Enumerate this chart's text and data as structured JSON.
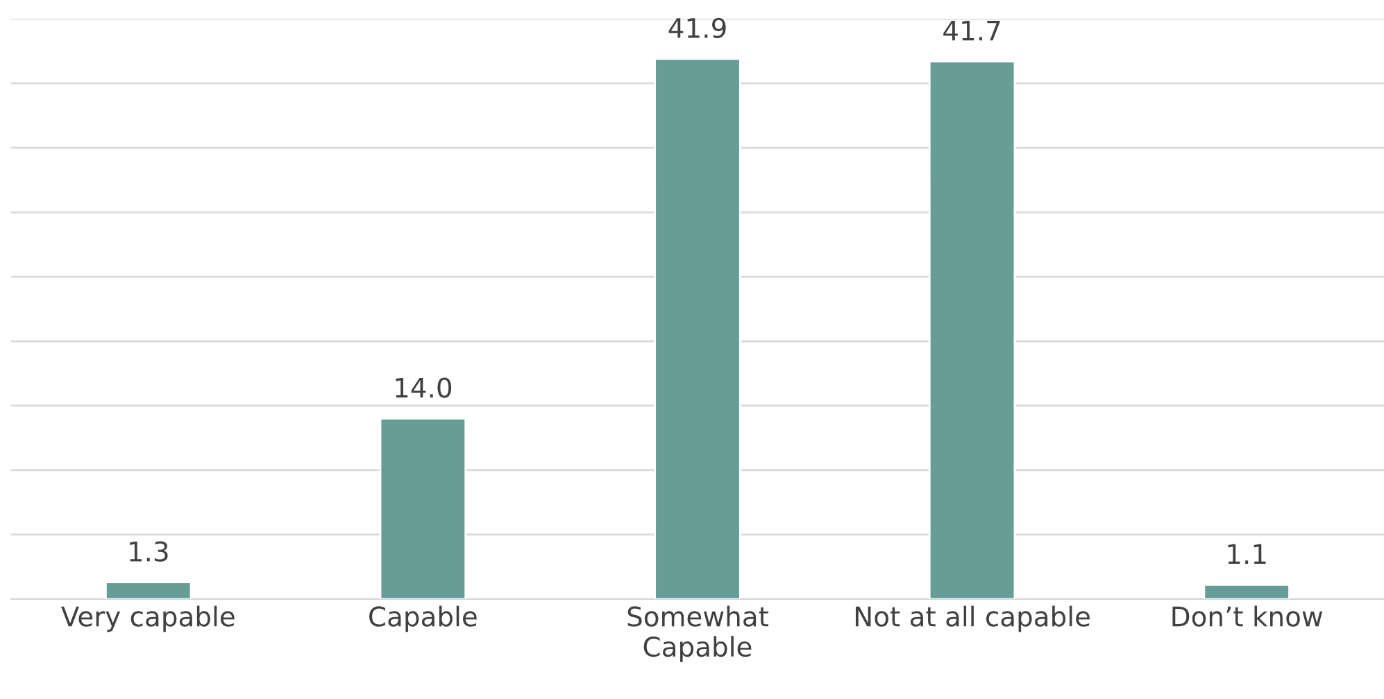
{
  "chart_data": {
    "type": "bar",
    "categories": [
      "Very capable",
      "Capable",
      "Somewhat\nCapable",
      "Not at all capable",
      "Don’t know"
    ],
    "values": [
      1.3,
      14.0,
      41.9,
      41.7,
      1.1
    ],
    "value_labels": [
      "1.3",
      "14.0",
      "41.9",
      "41.7",
      "1.1"
    ],
    "color": "#669d96",
    "ylim": [
      0,
      45
    ],
    "yticks": [
      {
        "value": 0,
        "label": null
      },
      {
        "value": 5,
        "label": null
      },
      {
        "value": 10,
        "label": null
      },
      {
        "value": 15,
        "label": null
      },
      {
        "value": 20,
        "label": null
      },
      {
        "value": 25,
        "label": null
      },
      {
        "value": 30,
        "label": null
      },
      {
        "value": 35,
        "label": null
      },
      {
        "value": 40,
        "label": null
      },
      {
        "value": 45,
        "label": null
      }
    ],
    "grid": "y",
    "tick_labels": "x"
  }
}
